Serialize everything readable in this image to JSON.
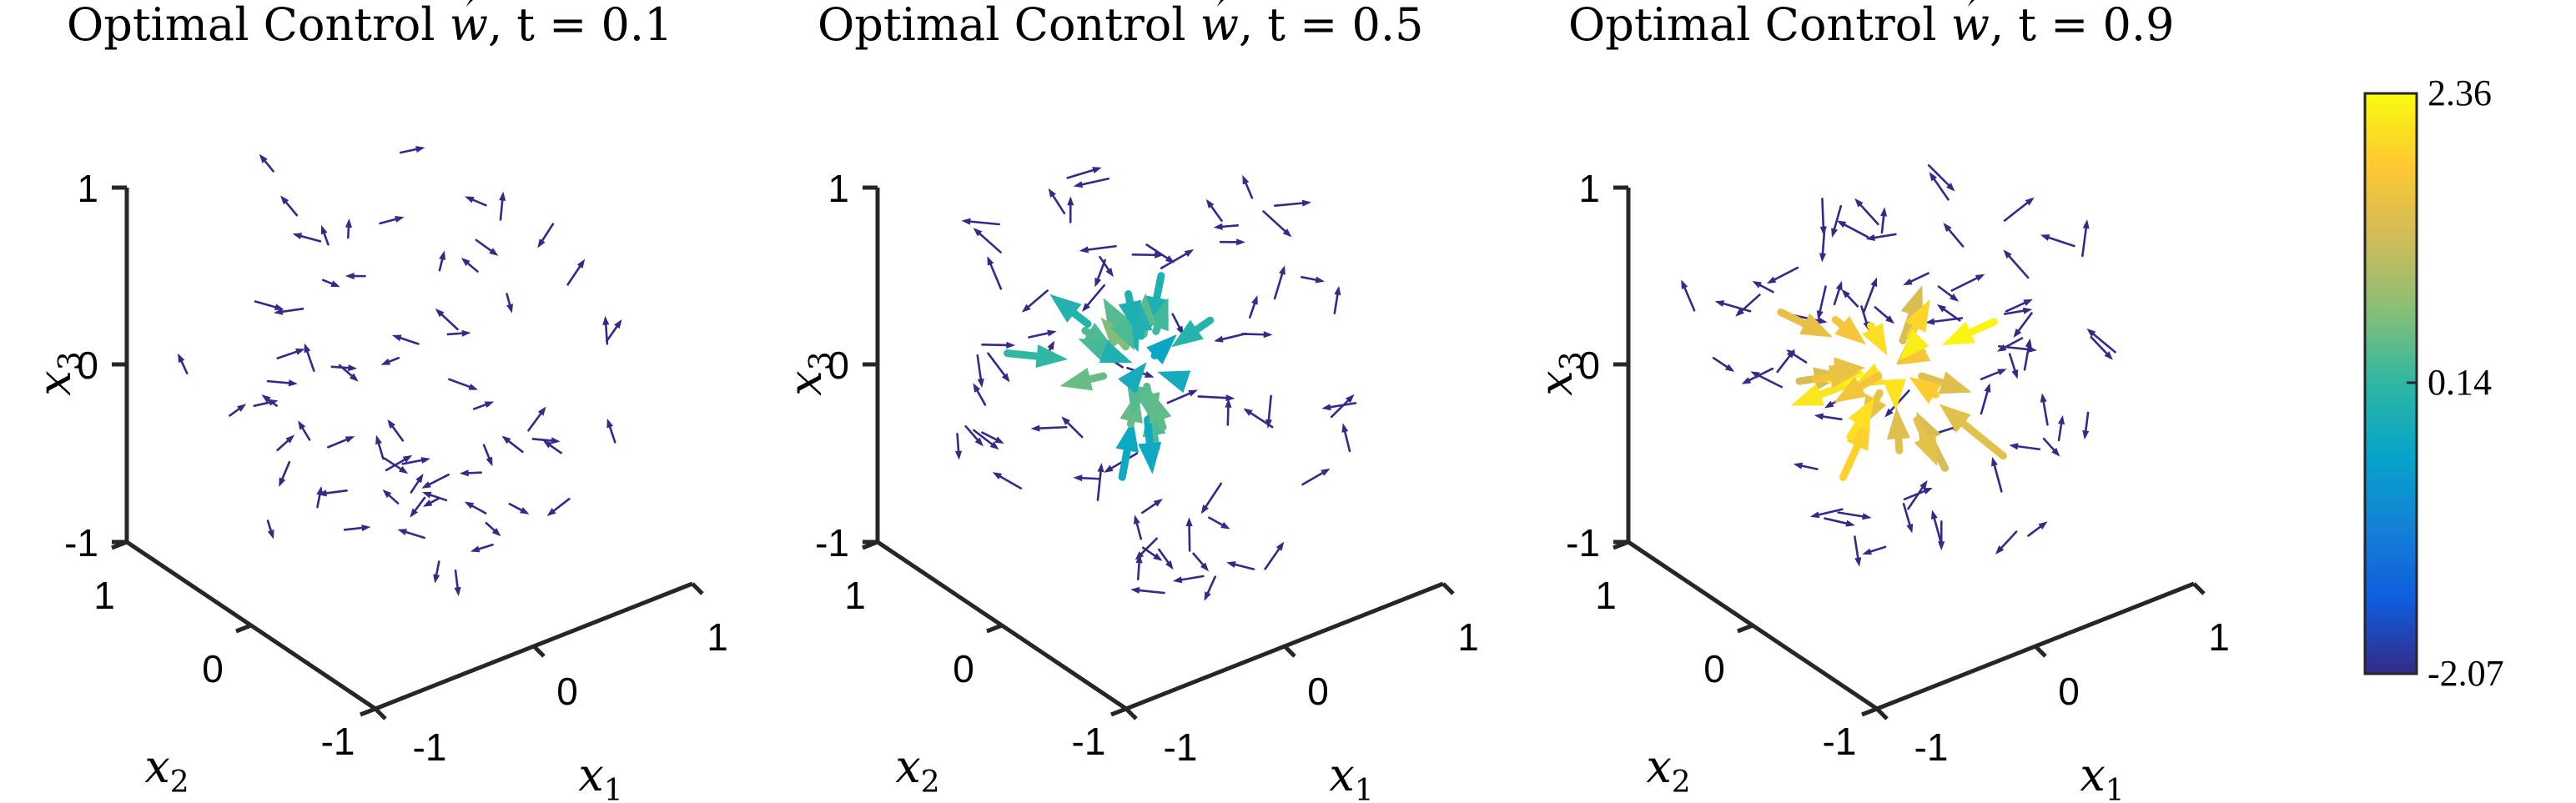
{
  "chart_data": [
    {
      "type": "quiver3d",
      "title": "Optimal Control ⃗w, t = 0.1",
      "title_parts": {
        "prefix": "Optimal Control ",
        "symbol": "w",
        "suffix": ", t = 0.1"
      },
      "t": 0.1,
      "xlabel": "x1",
      "ylabel": "x2",
      "zlabel": "x3",
      "xlim": [
        -1,
        1
      ],
      "ylim": [
        -1,
        1
      ],
      "zlim": [
        -1,
        1
      ],
      "xticks": [
        "-1",
        "0",
        "1"
      ],
      "yticks": [
        "-1",
        "0",
        "1"
      ],
      "zticks": [
        "-1",
        "0",
        "1"
      ],
      "arrow_scale": 0.12,
      "arrow_color_value": -2.07,
      "grid": false
    },
    {
      "type": "quiver3d",
      "title": "Optimal Control ⃗w, t = 0.5",
      "title_parts": {
        "prefix": "Optimal Control ",
        "symbol": "w",
        "suffix": ", t = 0.5"
      },
      "t": 0.5,
      "xlabel": "x1",
      "ylabel": "x2",
      "zlabel": "x3",
      "xlim": [
        -1,
        1
      ],
      "ylim": [
        -1,
        1
      ],
      "zlim": [
        -1,
        1
      ],
      "xticks": [
        "-1",
        "0",
        "1"
      ],
      "yticks": [
        "-1",
        "0",
        "1"
      ],
      "zticks": [
        "-1",
        "0",
        "1"
      ],
      "arrow_scale": 0.45,
      "arrow_color_value": 0.14,
      "grid": false
    },
    {
      "type": "quiver3d",
      "title": "Optimal Control ⃗w, t = 0.9",
      "title_parts": {
        "prefix": "Optimal Control ",
        "symbol": "w",
        "suffix": ", t = 0.9"
      },
      "t": 0.9,
      "xlabel": "x1",
      "ylabel": "x2",
      "zlabel": "x3",
      "xlim": [
        -1,
        1
      ],
      "ylim": [
        -1,
        1
      ],
      "zlim": [
        -1,
        1
      ],
      "xticks": [
        "-1",
        "0",
        "1"
      ],
      "yticks": [
        "-1",
        "0",
        "1"
      ],
      "zticks": [
        "-1",
        "0",
        "1"
      ],
      "arrow_scale": 0.55,
      "arrow_color_value": 1.8,
      "grid": false
    }
  ],
  "colorbar": {
    "min": -2.07,
    "max": 2.36,
    "ticks": [
      "2.36",
      "0.14",
      "-2.07"
    ],
    "tick_values": [
      2.36,
      0.14,
      -2.07
    ],
    "colormap": "parula",
    "colors": [
      "#352a87",
      "#0f5cdd",
      "#1481d6",
      "#06a4ca",
      "#2eb7a4",
      "#87bf77",
      "#d1bb59",
      "#fec832",
      "#f9fb0e"
    ]
  }
}
